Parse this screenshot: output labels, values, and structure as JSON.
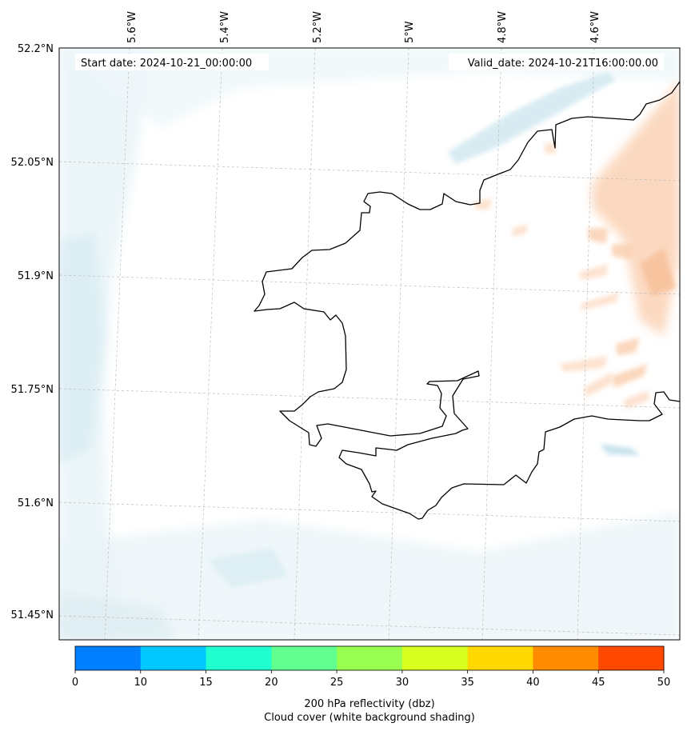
{
  "map": {
    "start_date": "Start date: 2024-10-21_00:00:00",
    "valid_date": "Valid_date: 2024-10-21T16:00:00.00",
    "lon_labels": [
      "5.6°W",
      "5.4°W",
      "5.2°W",
      "5°W",
      "4.8°W",
      "4.6°W"
    ],
    "lat_labels": [
      "52.2°N",
      "52.05°N",
      "51.9°N",
      "51.75°N",
      "51.6°N",
      "51.45°N"
    ],
    "coastline_color": "#000000",
    "gridlines": true
  },
  "colorbar": {
    "ticks": [
      "0",
      "10",
      "15",
      "20",
      "25",
      "30",
      "35",
      "40",
      "45",
      "50"
    ],
    "colors": [
      "#0080ff",
      "#00c8ff",
      "#20ffd0",
      "#60ff90",
      "#98ff50",
      "#d8ff20",
      "#ffd800",
      "#ff8c00",
      "#ff4800"
    ],
    "label_line1": "200 hPa reflectivity (dbz)",
    "label_line2": "Cloud cover (white background shading)"
  },
  "chart_data": {
    "type": "heatmap",
    "field": "200 hPa reflectivity (dbz)",
    "levels": [
      0,
      10,
      15,
      20,
      25,
      30,
      35,
      40,
      45,
      50
    ],
    "lon_ticks": [
      -5.6,
      -5.4,
      -5.2,
      -5.0,
      -4.8,
      -4.6
    ],
    "lat_ticks": [
      52.2,
      52.05,
      51.9,
      51.75,
      51.6,
      51.45
    ],
    "background_shading": "Cloud cover"
  }
}
